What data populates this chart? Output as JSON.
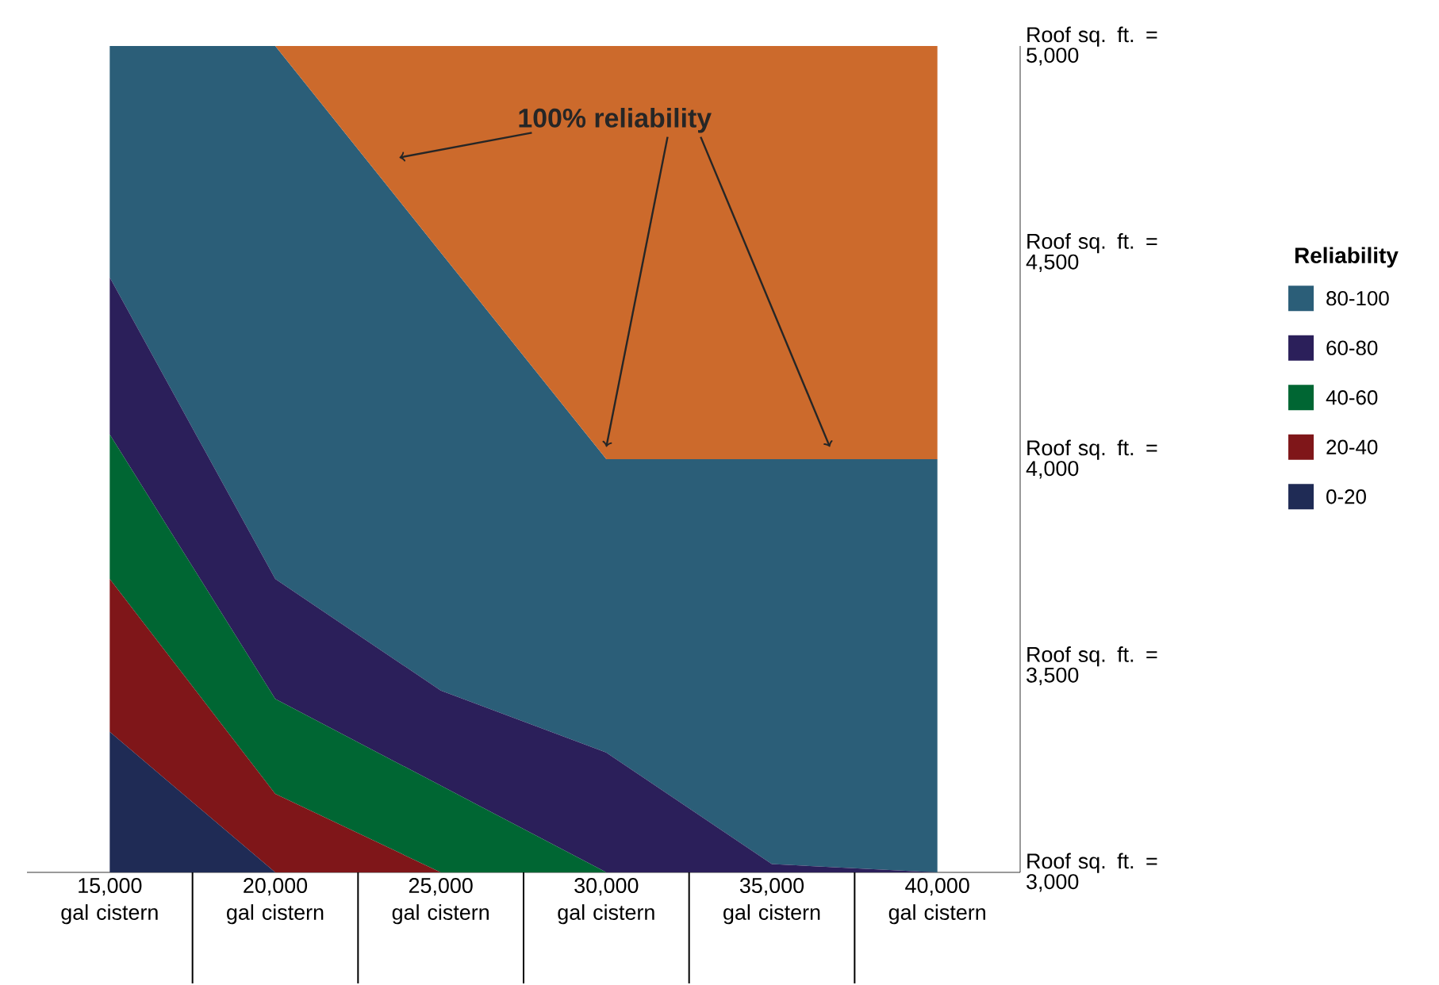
{
  "chart_data": {
    "type": "area",
    "categories": [
      "15,000 gal cistern",
      "20,000 gal cistern",
      "25,000 gal cistern",
      "30,000 gal cistern",
      "35,000 gal cistern",
      "40,000 gal cistern"
    ],
    "series": [
      {
        "name": "80-100",
        "color": "#2b5e78",
        "values": [
          5000,
          5000,
          4500,
          4000,
          4000,
          4000
        ]
      },
      {
        "name": "60-80",
        "color": "#2b1f5a",
        "values": [
          4440,
          3710,
          3440,
          3290,
          3020,
          3000
        ]
      },
      {
        "name": "40-60",
        "color": "#006633",
        "values": [
          4060,
          3420,
          3210,
          3000,
          3000,
          3000
        ]
      },
      {
        "name": "20-40",
        "color": "#7f1619",
        "values": [
          3710,
          3190,
          3000,
          3000,
          3000,
          3000
        ]
      },
      {
        "name": "0-20",
        "color": "#1f2b55",
        "values": [
          3340,
          3000,
          3000,
          3000,
          3000,
          3000
        ]
      },
      {
        "color": "#cc6a2c",
        "values": [
          5000,
          5000,
          5000,
          5000,
          5000,
          5000
        ]
      }
    ],
    "ylim": [
      3000,
      5000
    ],
    "yticks": [
      {
        "value": 3000,
        "label": "Roof sq. ft. = 3,000"
      },
      {
        "value": 3500,
        "label": "Roof sq. ft. = 3,500"
      },
      {
        "value": 4000,
        "label": "Roof sq. ft. = 4,000"
      },
      {
        "value": 4500,
        "label": "Roof sq. ft. = 4,500"
      },
      {
        "value": 5000,
        "label": "Roof sq. ft. = 5,000"
      }
    ],
    "legend": "right",
    "legend_title": "Reliability",
    "annotations": [
      "100% reliability"
    ]
  }
}
